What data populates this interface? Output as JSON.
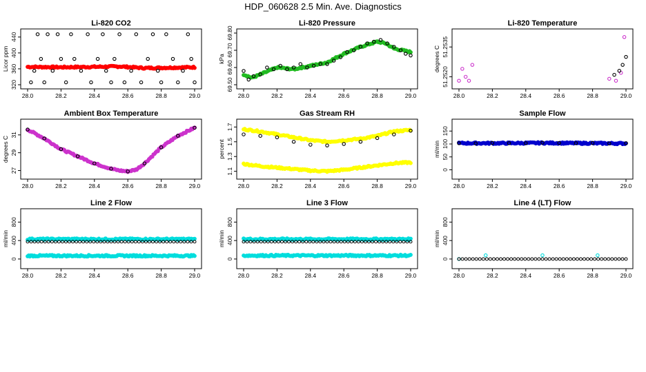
{
  "page_title": "HDP_060628  2.5 Min. Ave. Diagnostics",
  "chart_data": [
    {
      "type": "scatter",
      "title": "Li-820 CO2",
      "ylabel": "Licor ppm",
      "xlim": [
        28.0,
        29.0
      ],
      "ylim": [
        320,
        450
      ],
      "xticks": [
        "28.0",
        "28.2",
        "28.4",
        "28.6",
        "28.8",
        "29.0"
      ],
      "yticks": [
        "320",
        "360",
        "400",
        "440"
      ],
      "series": [
        {
          "color": "#ff0000",
          "style": "band",
          "x": [
            28.0,
            28.2,
            28.4,
            28.55,
            28.7,
            28.85,
            29.0
          ],
          "y": [
            365,
            364,
            365,
            366,
            362,
            363,
            364
          ]
        },
        {
          "color": "#000000",
          "style": "points",
          "x": [
            28.02,
            28.04,
            28.06,
            28.08,
            28.1,
            28.12,
            28.15,
            28.18,
            28.2,
            28.23,
            28.26,
            28.28,
            28.32,
            28.36,
            28.38,
            28.42,
            28.45,
            28.47,
            28.5,
            28.52,
            28.55,
            28.58,
            28.62,
            28.65,
            28.68,
            28.72,
            28.75,
            28.78,
            28.8,
            28.83,
            28.87,
            28.9,
            28.93,
            28.96,
            28.98,
            29.0
          ],
          "y": [
            326,
            355,
            447,
            385,
            326,
            447,
            355,
            447,
            385,
            326,
            447,
            385,
            355,
            447,
            326,
            385,
            447,
            355,
            326,
            385,
            447,
            326,
            355,
            447,
            326,
            385,
            447,
            355,
            326,
            447,
            385,
            326,
            355,
            447,
            385,
            326
          ]
        }
      ]
    },
    {
      "type": "scatter",
      "title": "Li-820 Pressure",
      "ylabel": "kPa",
      "xlim": [
        28.0,
        29.0
      ],
      "ylim": [
        69.5,
        69.8
      ],
      "xticks": [
        "28.0",
        "28.2",
        "28.4",
        "28.6",
        "28.8",
        "29.0"
      ],
      "yticks": [
        "69.50",
        "69.60",
        "69.70",
        "69.80"
      ],
      "series": [
        {
          "color": "#22bb22",
          "style": "band",
          "x": [
            28.0,
            28.05,
            28.1,
            28.2,
            28.3,
            28.4,
            28.5,
            28.6,
            28.7,
            28.8,
            28.85,
            28.9,
            29.0
          ],
          "y": [
            69.56,
            69.54,
            69.56,
            69.6,
            69.59,
            69.61,
            69.63,
            69.68,
            69.72,
            69.75,
            69.74,
            69.71,
            69.69
          ]
        },
        {
          "color": "#000000",
          "style": "points",
          "x": [
            28.0,
            28.03,
            28.06,
            28.1,
            28.14,
            28.18,
            28.22,
            28.26,
            28.3,
            28.34,
            28.38,
            28.42,
            28.46,
            28.5,
            28.54,
            28.58,
            28.62,
            28.66,
            28.7,
            28.74,
            28.78,
            28.82,
            28.86,
            28.9,
            28.94,
            28.97,
            29.0
          ],
          "y": [
            69.58,
            69.53,
            69.55,
            69.56,
            69.6,
            69.59,
            69.61,
            69.59,
            69.6,
            69.62,
            69.6,
            69.61,
            69.62,
            69.62,
            69.64,
            69.66,
            69.69,
            69.7,
            69.72,
            69.74,
            69.75,
            69.76,
            69.74,
            69.72,
            69.7,
            69.68,
            69.67
          ]
        }
      ]
    },
    {
      "type": "scatter",
      "title": "Li-820 Temperature",
      "ylabel": "degrees C",
      "xlim": [
        28.0,
        29.0
      ],
      "ylim": [
        51.2516,
        51.2542
      ],
      "xticks": [
        "28.0",
        "28.2",
        "28.4",
        "28.6",
        "28.8",
        "29.0"
      ],
      "yticks": [
        "51.2520",
        "51.2535"
      ],
      "series": [
        {
          "color": "#cc33cc",
          "style": "points",
          "x": [
            28.0,
            28.02,
            28.04,
            28.06,
            28.08,
            28.9,
            28.94,
            28.97,
            28.99
          ],
          "y": [
            51.2518,
            51.2524,
            51.252,
            51.2518,
            51.2526,
            51.2519,
            51.2518,
            51.2522,
            51.254
          ]
        },
        {
          "color": "#000000",
          "style": "points",
          "x": [
            28.93,
            28.96,
            28.98,
            29.0
          ],
          "y": [
            51.2521,
            51.2523,
            51.2526,
            51.253
          ]
        }
      ]
    },
    {
      "type": "scatter",
      "title": "Ambient Box Temperature",
      "ylabel": "degrees C",
      "xlim": [
        28.0,
        29.0
      ],
      "ylim": [
        26.5,
        32.3
      ],
      "xticks": [
        "28.0",
        "28.2",
        "28.4",
        "28.6",
        "28.8",
        "29.0"
      ],
      "yticks": [
        "27",
        "29",
        "31"
      ],
      "series": [
        {
          "color": "#cc33cc",
          "style": "band",
          "x": [
            28.0,
            28.1,
            28.2,
            28.3,
            28.4,
            28.5,
            28.55,
            28.6,
            28.65,
            28.7,
            28.8,
            28.9,
            29.0
          ],
          "y": [
            31.6,
            30.6,
            29.4,
            28.6,
            27.8,
            27.2,
            27.0,
            26.9,
            27.1,
            27.8,
            29.6,
            30.9,
            31.8
          ]
        },
        {
          "color": "#000000",
          "style": "points",
          "x": [
            28.0,
            28.1,
            28.2,
            28.3,
            28.4,
            28.5,
            28.6,
            28.7,
            28.8,
            28.9,
            29.0
          ],
          "y": [
            31.6,
            30.6,
            29.4,
            28.6,
            27.8,
            27.2,
            26.9,
            27.8,
            29.6,
            30.9,
            31.8
          ]
        }
      ]
    },
    {
      "type": "scatter",
      "title": "Gas Stream RH",
      "ylabel": "percent",
      "xlim": [
        28.0,
        29.0
      ],
      "ylim": [
        1.05,
        1.75
      ],
      "xticks": [
        "28.0",
        "28.2",
        "28.4",
        "28.6",
        "28.8",
        "29.0"
      ],
      "yticks": [
        "1.1",
        "1.3",
        "1.5",
        "1.7"
      ],
      "series": [
        {
          "color": "#ffff00",
          "style": "band",
          "x": [
            28.0,
            28.1,
            28.2,
            28.3,
            28.4,
            28.5,
            28.6,
            28.7,
            28.8,
            28.9,
            29.0
          ],
          "y": [
            1.67,
            1.64,
            1.6,
            1.56,
            1.52,
            1.5,
            1.52,
            1.54,
            1.58,
            1.64,
            1.66
          ]
        },
        {
          "color": "#ffff00",
          "style": "band",
          "x": [
            28.0,
            28.1,
            28.2,
            28.3,
            28.4,
            28.5,
            28.6,
            28.7,
            28.8,
            28.9,
            29.0
          ],
          "y": [
            1.2,
            1.17,
            1.15,
            1.13,
            1.11,
            1.1,
            1.12,
            1.15,
            1.18,
            1.21,
            1.22
          ]
        },
        {
          "color": "#000000",
          "style": "points",
          "x": [
            28.0,
            28.1,
            28.2,
            28.3,
            28.4,
            28.5,
            28.6,
            28.7,
            28.8,
            28.9,
            29.0
          ],
          "y": [
            1.6,
            1.58,
            1.56,
            1.5,
            1.46,
            1.45,
            1.47,
            1.5,
            1.55,
            1.6,
            1.65
          ]
        }
      ]
    },
    {
      "type": "scatter",
      "title": "Sample Flow",
      "ylabel": "ml/min",
      "xlim": [
        28.0,
        29.0
      ],
      "ylim": [
        -20,
        180
      ],
      "xticks": [
        "28.0",
        "28.2",
        "28.4",
        "28.6",
        "28.8",
        "29.0"
      ],
      "yticks": [
        "0",
        "50",
        "100",
        "150"
      ],
      "series": [
        {
          "color": "#0000cc",
          "style": "band",
          "x": [
            28.0,
            28.25,
            28.5,
            28.75,
            29.0
          ],
          "y": [
            103,
            103,
            104,
            103,
            102
          ]
        },
        {
          "color": "#000000",
          "style": "points",
          "x": [
            28.0,
            28.1,
            28.2,
            28.3,
            28.4,
            28.5,
            28.6,
            28.7,
            28.8,
            28.9,
            29.0
          ],
          "y": [
            103,
            102,
            104,
            103,
            103,
            105,
            104,
            103,
            104,
            102,
            103
          ]
        }
      ]
    },
    {
      "type": "scatter",
      "title": "Line 2 Flow",
      "ylabel": "ml/min",
      "xlim": [
        28.0,
        29.0
      ],
      "ylim": [
        -120,
        1000
      ],
      "xticks": [
        "28.0",
        "28.2",
        "28.4",
        "28.6",
        "28.8",
        "29.0"
      ],
      "yticks": [
        "0",
        "400",
        "800"
      ],
      "series": [
        {
          "color": "#00dddd",
          "style": "band",
          "x": [
            28.0,
            29.0
          ],
          "y": [
            430,
            430
          ]
        },
        {
          "color": "#00dddd",
          "style": "band",
          "x": [
            28.0,
            29.0
          ],
          "y": [
            70,
            70
          ]
        },
        {
          "color": "#000000",
          "style": "points",
          "x": [
            28.0,
            28.5,
            29.0
          ],
          "y": [
            375,
            375,
            375
          ]
        }
      ]
    },
    {
      "type": "scatter",
      "title": "Line 3 Flow",
      "ylabel": "ml/min",
      "xlim": [
        28.0,
        29.0
      ],
      "ylim": [
        -120,
        1000
      ],
      "xticks": [
        "28.0",
        "28.2",
        "28.4",
        "28.6",
        "28.8",
        "29.0"
      ],
      "yticks": [
        "0",
        "400",
        "800"
      ],
      "series": [
        {
          "color": "#00dddd",
          "style": "band",
          "x": [
            28.0,
            29.0
          ],
          "y": [
            430,
            430
          ]
        },
        {
          "color": "#00dddd",
          "style": "band",
          "x": [
            28.0,
            29.0
          ],
          "y": [
            75,
            75
          ]
        },
        {
          "color": "#000000",
          "style": "points",
          "x": [
            28.0,
            28.5,
            29.0
          ],
          "y": [
            375,
            375,
            375
          ]
        }
      ]
    },
    {
      "type": "scatter",
      "title": "Line 4 (LT) Flow",
      "ylabel": "ml/min",
      "xlim": [
        28.0,
        29.0
      ],
      "ylim": [
        -120,
        1000
      ],
      "xticks": [
        "28.0",
        "28.2",
        "28.4",
        "28.6",
        "28.8",
        "29.0"
      ],
      "yticks": [
        "0",
        "400",
        "800"
      ],
      "series": [
        {
          "color": "#00dddd",
          "style": "points",
          "x": [
            28.0,
            28.16,
            28.5,
            28.83
          ],
          "y": [
            0,
            80,
            80,
            80
          ]
        },
        {
          "color": "#000000",
          "style": "points",
          "x": [
            28.0,
            28.5,
            29.0
          ],
          "y": [
            0,
            0,
            0
          ]
        }
      ]
    }
  ]
}
